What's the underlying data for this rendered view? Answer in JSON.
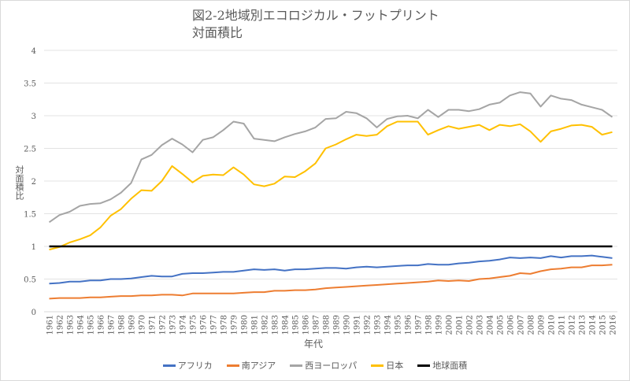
{
  "chart_data": {
    "type": "line",
    "title": "図2-2地域別エコロジカル・フットプリント",
    "subtitle": "対面積比",
    "xlabel": "年代",
    "ylabel": "対面積比",
    "ylim": [
      0,
      4
    ],
    "yticks": [
      "0",
      "0.5",
      "1",
      "1.5",
      "2",
      "2.5",
      "3",
      "3.5",
      "4"
    ],
    "grid": true,
    "legend_position": "bottom",
    "categories": [
      "1961",
      "1962",
      "1963",
      "1964",
      "1965",
      "1966",
      "1967",
      "1968",
      "1969",
      "1970",
      "1971",
      "1972",
      "1973",
      "1974",
      "1975",
      "1976",
      "1977",
      "1978",
      "1979",
      "1980",
      "1981",
      "1982",
      "1983",
      "1984",
      "1985",
      "1986",
      "1987",
      "1988",
      "1989",
      "1990",
      "1991",
      "1992",
      "1993",
      "1994",
      "1995",
      "1996",
      "1997",
      "1998",
      "1999",
      "2000",
      "2001",
      "2002",
      "2003",
      "2004",
      "2005",
      "2006",
      "2007",
      "2008",
      "2009",
      "2010",
      "2011",
      "2012",
      "2013",
      "2014",
      "2015",
      "2016"
    ],
    "series": [
      {
        "name": "アフリカ",
        "color": "#4472c4",
        "values": [
          0.43,
          0.44,
          0.46,
          0.46,
          0.48,
          0.48,
          0.5,
          0.5,
          0.51,
          0.53,
          0.55,
          0.54,
          0.54,
          0.58,
          0.59,
          0.59,
          0.6,
          0.61,
          0.61,
          0.63,
          0.65,
          0.64,
          0.65,
          0.63,
          0.65,
          0.65,
          0.66,
          0.67,
          0.67,
          0.66,
          0.68,
          0.69,
          0.68,
          0.69,
          0.7,
          0.71,
          0.71,
          0.73,
          0.72,
          0.72,
          0.74,
          0.75,
          0.77,
          0.78,
          0.8,
          0.83,
          0.82,
          0.83,
          0.82,
          0.85,
          0.83,
          0.85,
          0.85,
          0.86,
          0.84,
          0.82
        ]
      },
      {
        "name": "南アジア",
        "color": "#ed7d31",
        "values": [
          0.2,
          0.21,
          0.21,
          0.21,
          0.22,
          0.22,
          0.23,
          0.24,
          0.24,
          0.25,
          0.25,
          0.26,
          0.26,
          0.25,
          0.28,
          0.28,
          0.28,
          0.28,
          0.28,
          0.29,
          0.3,
          0.3,
          0.32,
          0.32,
          0.33,
          0.33,
          0.34,
          0.36,
          0.37,
          0.38,
          0.39,
          0.4,
          0.41,
          0.42,
          0.43,
          0.44,
          0.45,
          0.46,
          0.48,
          0.47,
          0.48,
          0.47,
          0.5,
          0.51,
          0.53,
          0.55,
          0.59,
          0.58,
          0.62,
          0.65,
          0.66,
          0.68,
          0.68,
          0.71,
          0.71,
          0.72
        ]
      },
      {
        "name": "西ヨーロッパ",
        "color": "#a5a5a5",
        "values": [
          1.37,
          1.48,
          1.53,
          1.62,
          1.65,
          1.66,
          1.72,
          1.82,
          1.97,
          2.33,
          2.4,
          2.55,
          2.65,
          2.56,
          2.44,
          2.63,
          2.67,
          2.78,
          2.91,
          2.88,
          2.65,
          2.63,
          2.61,
          2.67,
          2.72,
          2.76,
          2.82,
          2.95,
          2.96,
          3.06,
          3.04,
          2.96,
          2.82,
          2.95,
          2.99,
          3.0,
          2.96,
          3.09,
          2.98,
          3.09,
          3.09,
          3.07,
          3.1,
          3.17,
          3.2,
          3.31,
          3.36,
          3.34,
          3.14,
          3.31,
          3.26,
          3.24,
          3.17,
          3.13,
          3.09,
          2.98
        ]
      },
      {
        "name": "日本",
        "color": "#ffc000",
        "values": [
          0.95,
          0.99,
          1.06,
          1.11,
          1.17,
          1.29,
          1.47,
          1.57,
          1.73,
          1.86,
          1.85,
          2.0,
          2.23,
          2.11,
          1.98,
          2.08,
          2.1,
          2.09,
          2.21,
          2.1,
          1.95,
          1.92,
          1.96,
          2.07,
          2.06,
          2.15,
          2.27,
          2.5,
          2.56,
          2.64,
          2.71,
          2.69,
          2.71,
          2.84,
          2.91,
          2.91,
          2.91,
          2.71,
          2.78,
          2.84,
          2.8,
          2.83,
          2.86,
          2.78,
          2.86,
          2.84,
          2.87,
          2.76,
          2.6,
          2.76,
          2.8,
          2.85,
          2.86,
          2.83,
          2.71,
          2.75
        ]
      },
      {
        "name": "地球面積",
        "color": "#000000",
        "values": [
          1,
          1,
          1,
          1,
          1,
          1,
          1,
          1,
          1,
          1,
          1,
          1,
          1,
          1,
          1,
          1,
          1,
          1,
          1,
          1,
          1,
          1,
          1,
          1,
          1,
          1,
          1,
          1,
          1,
          1,
          1,
          1,
          1,
          1,
          1,
          1,
          1,
          1,
          1,
          1,
          1,
          1,
          1,
          1,
          1,
          1,
          1,
          1,
          1,
          1,
          1,
          1,
          1,
          1,
          1,
          1
        ]
      }
    ]
  }
}
